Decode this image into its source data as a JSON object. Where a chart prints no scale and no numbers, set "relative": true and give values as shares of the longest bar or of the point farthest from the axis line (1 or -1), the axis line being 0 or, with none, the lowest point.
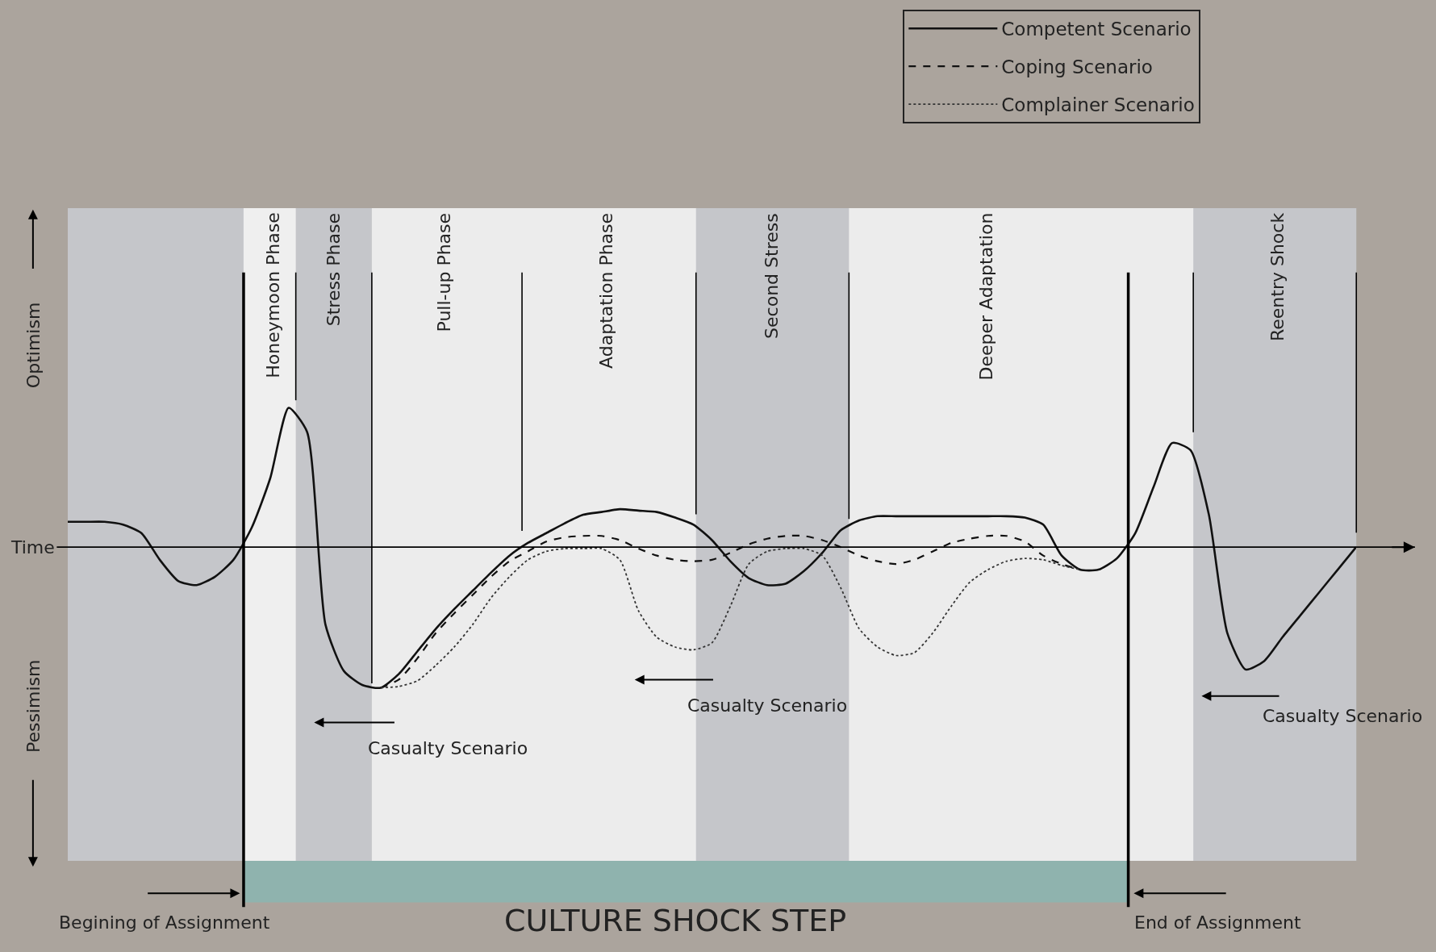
{
  "chart_data": {
    "type": "line",
    "relative": true,
    "categories": [
      null,
      null,
      null,
      null,
      null,
      null,
      null,
      null,
      null,
      null,
      null,
      null,
      null,
      null,
      null,
      null,
      null,
      null,
      null,
      null,
      null,
      null,
      null,
      null,
      null,
      null,
      null,
      null,
      null,
      null,
      null,
      null,
      null,
      null,
      null,
      null,
      null,
      null,
      null,
      null,
      null,
      null,
      null,
      null,
      null,
      null,
      null,
      null,
      null,
      null,
      null,
      null,
      null,
      null,
      null,
      null,
      null,
      null,
      null,
      null,
      null,
      null,
      null,
      null,
      null,
      null,
      null,
      null,
      null,
      null,
      null
    ],
    "series": [
      {
        "name": "Competent Scenario",
        "color": "#111111",
        "line_style": "solid",
        "values": [
          0.18,
          0.18,
          0.18,
          0.16,
          0.1,
          -0.09,
          -0.24,
          -0.27,
          -0.21,
          -0.09,
          0.14,
          0.49,
          0.99,
          0.82,
          -0.55,
          -0.88,
          -0.98,
          -1,
          -0.9,
          -0.74,
          -0.58,
          -0.44,
          -0.31,
          -0.18,
          -0.06,
          0.03,
          0.1,
          0.17,
          0.23,
          0.25,
          0.27,
          0.26,
          0.25,
          0.21,
          0.16,
          0.05,
          -0.1,
          -0.22,
          -0.27,
          -0.26,
          -0.17,
          -0.04,
          0.12,
          0.19,
          0.22,
          0.22,
          0.22,
          0.22,
          0.22,
          0.22,
          0.22,
          0.22,
          0.21,
          0.16,
          -0.06,
          -0.16,
          -0.16,
          -0.08,
          0.1,
          0.43,
          0.74,
          0.69,
          0.23,
          -0.61,
          -0.87,
          -0.81,
          -0.64,
          -0.48,
          -0.32,
          -0.16,
          0
        ]
      },
      {
        "name": "Coping Scenario",
        "color": "#111111",
        "line_style": "dashed",
        "values": [
          null,
          null,
          null,
          null,
          null,
          null,
          null,
          null,
          null,
          null,
          null,
          null,
          null,
          null,
          null,
          null,
          null,
          -1,
          -0.94,
          -0.79,
          -0.61,
          -0.47,
          -0.34,
          -0.21,
          -0.1,
          -0.03,
          0.04,
          0.07,
          0.08,
          0.08,
          0.05,
          -0.01,
          -0.06,
          -0.09,
          -0.1,
          -0.09,
          -0.04,
          0.02,
          0.06,
          0.08,
          0.08,
          0.05,
          0,
          -0.06,
          -0.1,
          -0.12,
          -0.09,
          -0.03,
          0.03,
          0.06,
          0.08,
          0.08,
          0.04,
          -0.06,
          -0.12,
          -0.16,
          null,
          null,
          null,
          null,
          null,
          null,
          null,
          null,
          null,
          null,
          null,
          null,
          null,
          null,
          null
        ]
      },
      {
        "name": "Complainer Scenario",
        "color": "#333333",
        "line_style": "dotted",
        "values": [
          null,
          null,
          null,
          null,
          null,
          null,
          null,
          null,
          null,
          null,
          null,
          null,
          null,
          null,
          null,
          null,
          null,
          -1,
          -0.99,
          -0.95,
          -0.84,
          -0.71,
          -0.55,
          -0.36,
          -0.21,
          -0.09,
          -0.03,
          -0.01,
          -0.01,
          -0.01,
          -0.09,
          -0.45,
          -0.64,
          -0.71,
          -0.73,
          -0.68,
          -0.42,
          -0.12,
          -0.03,
          -0.01,
          -0.01,
          -0.06,
          -0.29,
          -0.58,
          -0.71,
          -0.77,
          -0.75,
          -0.61,
          -0.42,
          -0.25,
          -0.16,
          -0.1,
          -0.08,
          -0.09,
          -0.13,
          -0.16,
          null,
          null,
          null,
          null,
          null,
          null,
          null,
          null,
          null,
          null,
          null,
          null,
          null,
          null,
          null
        ]
      }
    ],
    "annotations": [
      "Time",
      "Optimism",
      "Pessimism",
      "Casualty Scenario",
      "Casualty Scenario",
      "Casualty Scenario",
      "Honeymoon Phase",
      "Stress Phase",
      "Pull-up Phase",
      "Adaptation Phase",
      "Second Stress",
      "Deeper Adaptation",
      "Reentry Shock",
      "Begining of Assignment",
      "End of Assignment",
      "CULTURE SHOCK STEP"
    ],
    "legend": "top right"
  }
}
